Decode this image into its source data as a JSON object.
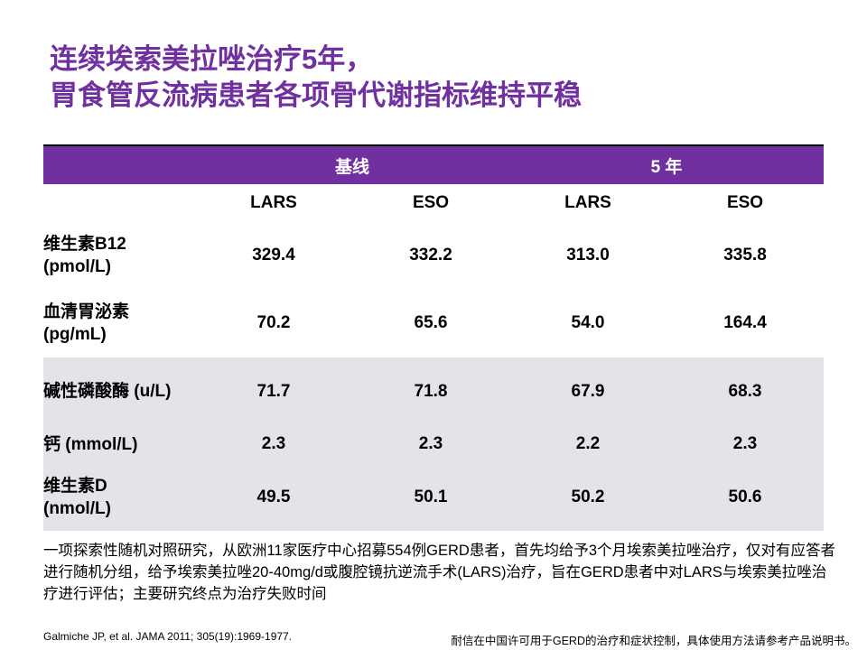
{
  "title": {
    "line1": "连续埃索美拉唑治疗5年，",
    "line2": "胃食管反流病患者各项骨代谢指标维持平稳"
  },
  "table": {
    "group_headers": [
      "基线",
      "5 年"
    ],
    "column_headers": [
      "LARS",
      "ESO",
      "LARS",
      "ESO"
    ],
    "rows": [
      {
        "label1": "维生素B12",
        "label2": "(pmol/L)",
        "values": [
          "329.4",
          "332.2",
          "313.0",
          "335.8"
        ]
      },
      {
        "label1": "血清胃泌素",
        "label2": "(pg/mL)",
        "values": [
          "70.2",
          "65.6",
          "54.0",
          "164.4"
        ]
      },
      {
        "label1": "碱性磷酸酶 (u/L)",
        "label2": "",
        "values": [
          "71.7",
          "71.8",
          "67.9",
          "68.3"
        ]
      },
      {
        "label1": "钙 (mmol/L)",
        "label2": "",
        "values": [
          "2.3",
          "2.3",
          "2.2",
          "2.3"
        ]
      },
      {
        "label1": "维生素D",
        "label2": "(nmol/L)",
        "values": [
          "49.5",
          "50.1",
          "50.2",
          "50.6"
        ]
      }
    ]
  },
  "footnote": "一项探索性随机对照研究，从欧洲11家医疗中心招募554例GERD患者，首先均给予3个月埃索美拉唑治疗，仅对有应答者进行随机分组，给予埃索美拉唑20-40mg/d或腹腔镜抗逆流手术(LARS)治疗，旨在GERD患者中对LARS与埃索美拉唑治疗进行评估；主要研究终点为治疗失败时间",
  "citation": "Galmiche JP, et al. JAMA 2011; 305(19):1969-1977.",
  "disclaimer": "耐信在中国许可用于GERD的治疗和症状控制，具体使用方法请参考产品说明书。",
  "colors": {
    "accent": "#7030A0",
    "row_shade": "#E5E3E9"
  }
}
